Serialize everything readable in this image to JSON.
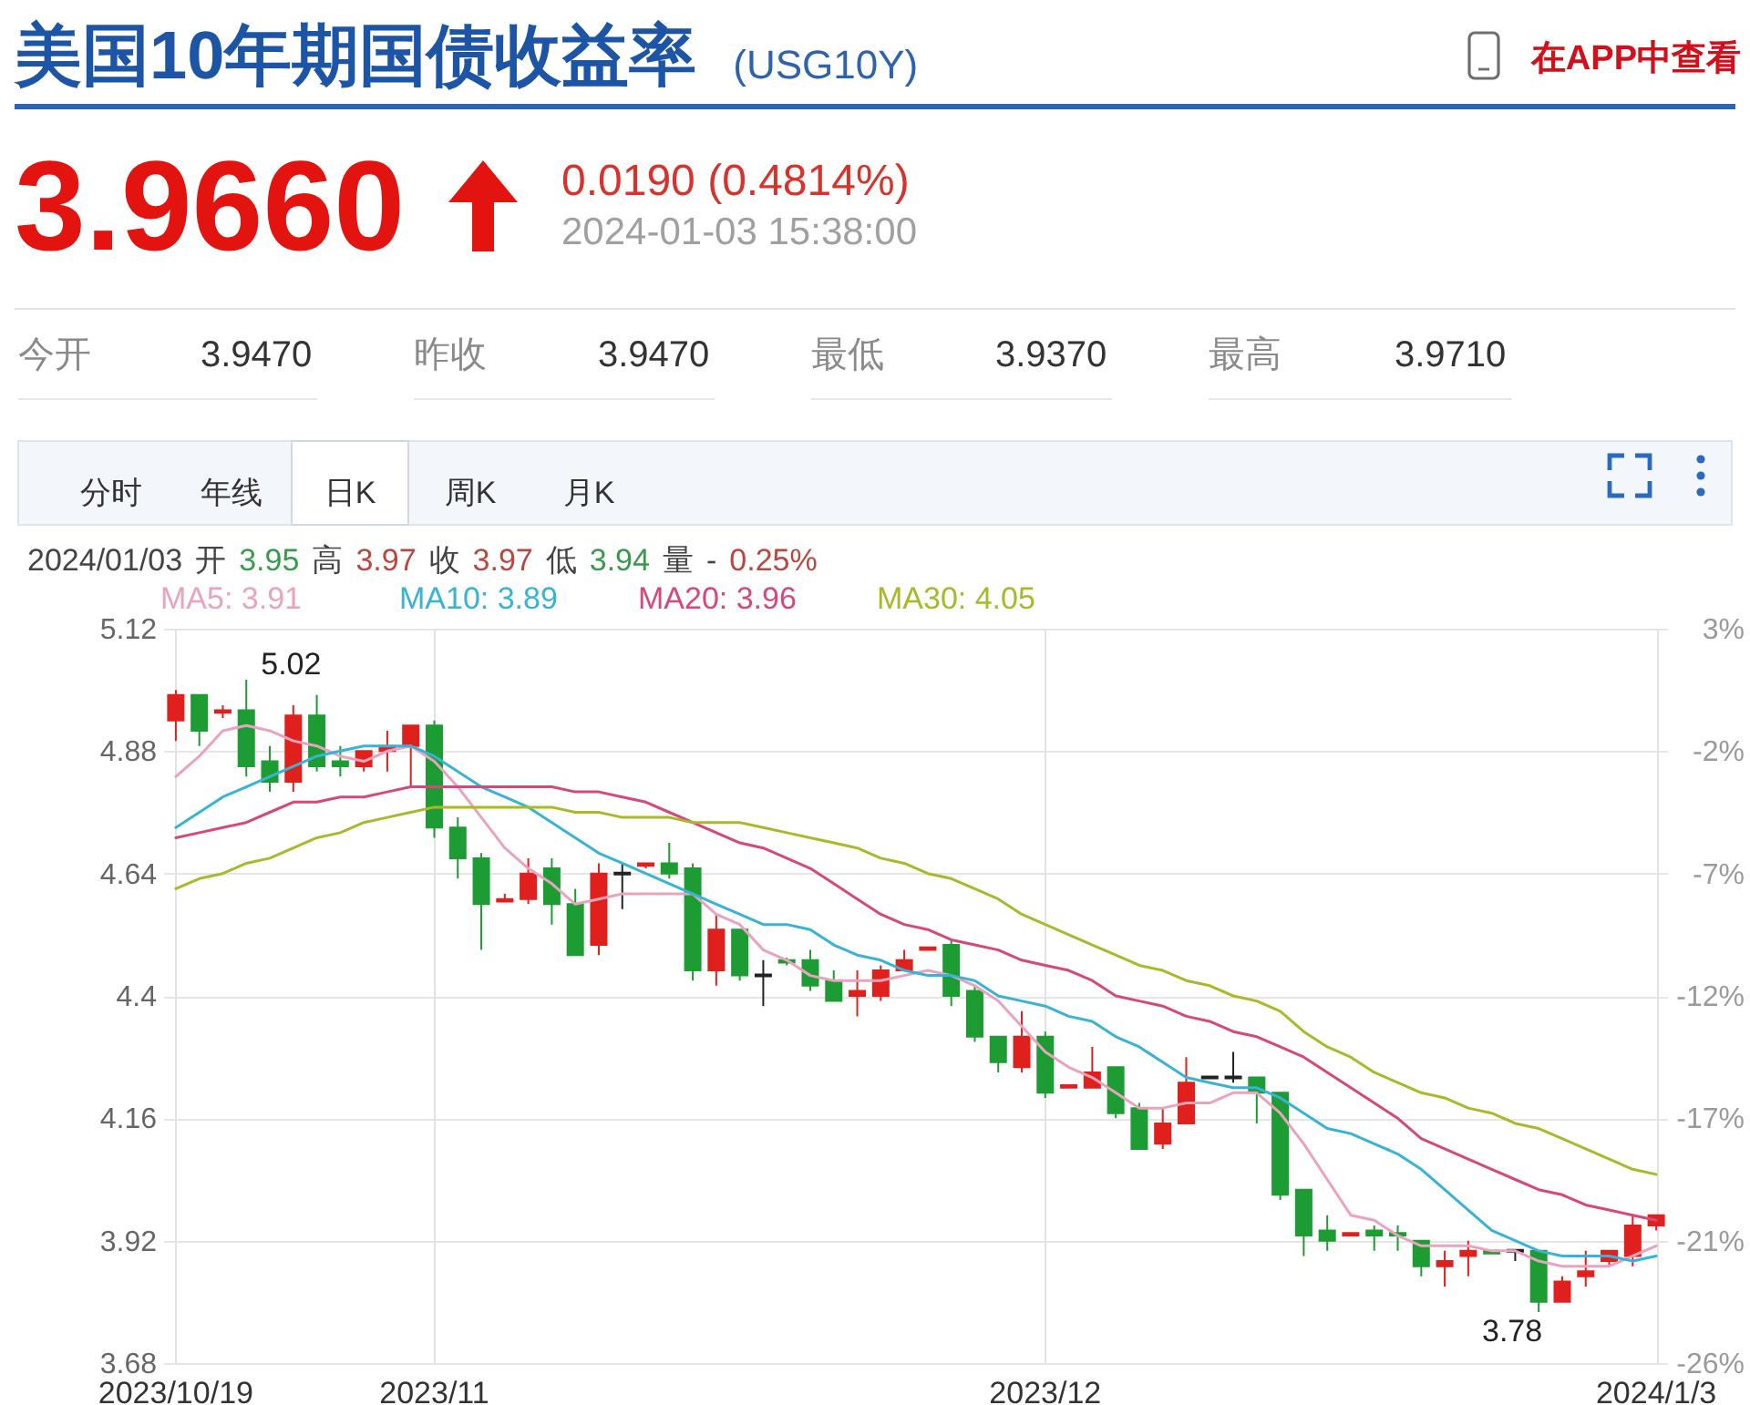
{
  "chart_data": {
    "type": "candlestick",
    "title": "美国10年期国债收益率",
    "subtitle": "(USG10Y)",
    "categories": [
      "2023/10/19",
      null,
      null,
      null,
      null,
      null,
      null,
      null,
      null,
      null,
      null,
      "2023/11",
      null,
      null,
      null,
      null,
      null,
      null,
      null,
      null,
      null,
      null,
      null,
      null,
      null,
      null,
      null,
      null,
      null,
      null,
      null,
      null,
      null,
      null,
      null,
      null,
      null,
      "2023/12",
      null,
      null,
      null,
      null,
      null,
      null,
      null,
      null,
      null,
      null,
      null,
      null,
      null,
      null,
      null,
      null,
      null,
      null,
      null,
      null,
      null,
      null,
      null,
      null,
      null,
      "2024/1/3"
    ],
    "ohlc": [
      [
        4.94,
        5.0,
        4.9,
        4.99
      ],
      [
        4.99,
        4.99,
        4.89,
        4.92
      ],
      [
        4.955,
        4.97,
        4.945,
        4.96
      ],
      [
        4.96,
        5.02,
        4.83,
        4.85
      ],
      [
        4.86,
        4.89,
        4.8,
        4.82
      ],
      [
        4.82,
        4.97,
        4.8,
        4.95
      ],
      [
        4.95,
        4.99,
        4.84,
        4.85
      ],
      [
        4.86,
        4.89,
        4.83,
        4.85
      ],
      [
        4.85,
        4.88,
        4.84,
        4.88
      ],
      [
        4.88,
        4.92,
        4.84,
        4.89
      ],
      [
        4.89,
        4.93,
        4.81,
        4.93
      ],
      [
        4.93,
        4.94,
        4.71,
        4.73
      ],
      [
        4.73,
        4.75,
        4.63,
        4.67
      ],
      [
        4.67,
        4.68,
        4.49,
        4.58
      ],
      [
        4.585,
        4.6,
        4.585,
        4.59
      ],
      [
        4.59,
        4.67,
        4.58,
        4.64
      ],
      [
        4.65,
        4.67,
        4.54,
        4.58
      ],
      [
        4.58,
        4.61,
        4.48,
        4.48
      ],
      [
        4.5,
        4.66,
        4.48,
        4.64
      ],
      [
        4.64,
        4.66,
        4.57,
        4.64
      ],
      [
        4.655,
        4.66,
        4.65,
        4.66
      ],
      [
        4.66,
        4.7,
        4.63,
        4.64
      ],
      [
        4.65,
        4.66,
        4.43,
        4.45
      ],
      [
        4.45,
        4.56,
        4.42,
        4.53
      ],
      [
        4.53,
        4.53,
        4.43,
        4.44
      ],
      [
        4.44,
        4.47,
        4.38,
        4.44
      ],
      [
        4.47,
        4.475,
        4.46,
        4.465
      ],
      [
        4.47,
        4.49,
        4.41,
        4.42
      ],
      [
        4.43,
        4.45,
        4.39,
        4.39
      ],
      [
        4.4,
        4.45,
        4.36,
        4.41
      ],
      [
        4.4,
        4.46,
        4.39,
        4.45
      ],
      [
        4.45,
        4.49,
        4.45,
        4.47
      ],
      [
        4.49,
        4.495,
        4.49,
        4.495
      ],
      [
        4.5,
        4.51,
        4.38,
        4.4
      ],
      [
        4.41,
        4.42,
        4.31,
        4.32
      ],
      [
        4.32,
        4.32,
        4.25,
        4.27
      ],
      [
        4.26,
        4.37,
        4.25,
        4.32
      ],
      [
        4.32,
        4.33,
        4.2,
        4.21
      ],
      [
        4.22,
        4.225,
        4.22,
        4.225
      ],
      [
        4.22,
        4.3,
        4.22,
        4.25
      ],
      [
        4.26,
        4.26,
        4.16,
        4.17
      ],
      [
        4.18,
        4.19,
        4.1,
        4.1
      ],
      [
        4.11,
        4.18,
        4.1,
        4.15
      ],
      [
        4.15,
        4.28,
        4.15,
        4.23
      ],
      [
        4.24,
        4.24,
        4.24,
        4.24
      ],
      [
        4.24,
        4.29,
        4.23,
        4.24
      ],
      [
        4.24,
        4.24,
        4.15,
        4.21
      ],
      [
        4.21,
        4.21,
        4.0,
        4.01
      ],
      [
        4.02,
        4.02,
        3.89,
        3.93
      ],
      [
        3.94,
        3.97,
        3.9,
        3.92
      ],
      [
        3.93,
        3.935,
        3.93,
        3.935
      ],
      [
        3.94,
        3.95,
        3.9,
        3.93
      ],
      [
        3.935,
        3.95,
        3.9,
        3.93
      ],
      [
        3.92,
        3.92,
        3.85,
        3.87
      ],
      [
        3.87,
        3.9,
        3.83,
        3.88
      ],
      [
        3.89,
        3.92,
        3.85,
        3.9
      ],
      [
        3.9,
        3.9,
        3.895,
        3.895
      ],
      [
        3.9,
        3.9,
        3.88,
        3.9
      ],
      [
        3.9,
        3.9,
        3.78,
        3.8
      ],
      [
        3.8,
        3.85,
        3.8,
        3.84
      ],
      [
        3.85,
        3.9,
        3.83,
        3.86
      ],
      [
        3.88,
        3.9,
        3.87,
        3.9
      ],
      [
        3.89,
        3.97,
        3.87,
        3.95
      ],
      [
        3.95,
        3.97,
        3.94,
        3.97
      ]
    ],
    "colors": [
      "#e0201c",
      "#1e9c34",
      "#e0201c",
      "#1e9c34",
      "#1e9c34",
      "#e0201c",
      "#1e9c34",
      "#1e9c34",
      "#e0201c",
      "#e0201c",
      "#e0201c",
      "#1e9c34",
      "#1e9c34",
      "#1e9c34",
      "#e0201c",
      "#e0201c",
      "#1e9c34",
      "#1e9c34",
      "#e0201c",
      "#222222",
      "#e0201c",
      "#1e9c34",
      "#1e9c34",
      "#e0201c",
      "#1e9c34",
      "#222222",
      "#1e9c34",
      "#1e9c34",
      "#1e9c34",
      "#e0201c",
      "#e0201c",
      "#e0201c",
      "#e0201c",
      "#1e9c34",
      "#1e9c34",
      "#1e9c34",
      "#e0201c",
      "#1e9c34",
      "#e0201c",
      "#e0201c",
      "#1e9c34",
      "#1e9c34",
      "#e0201c",
      "#e0201c",
      "#222222",
      "#222222",
      "#1e9c34",
      "#1e9c34",
      "#1e9c34",
      "#1e9c34",
      "#e0201c",
      "#1e9c34",
      "#1e9c34",
      "#1e9c34",
      "#e0201c",
      "#e0201c",
      "#1e9c34",
      "#222222",
      "#1e9c34",
      "#e0201c",
      "#e0201c",
      "#e0201c",
      "#e0201c",
      "#e0201c"
    ],
    "series": [
      {
        "name": "MA5: 3.91",
        "type": "line",
        "color": "#eaa3bf",
        "values": [
          4.83,
          4.87,
          4.92,
          4.93,
          4.92,
          4.9,
          4.89,
          4.87,
          4.86,
          4.88,
          4.89,
          4.86,
          4.81,
          4.75,
          4.69,
          4.65,
          4.62,
          4.58,
          4.59,
          4.6,
          4.6,
          4.6,
          4.6,
          4.56,
          4.54,
          4.49,
          4.47,
          4.44,
          4.43,
          4.43,
          4.43,
          4.44,
          4.45,
          4.44,
          4.42,
          4.39,
          4.34,
          4.29,
          4.26,
          4.24,
          4.21,
          4.18,
          4.18,
          4.19,
          4.19,
          4.21,
          4.21,
          4.17,
          4.11,
          4.04,
          3.97,
          3.96,
          3.93,
          3.91,
          3.91,
          3.91,
          3.9,
          3.9,
          3.88,
          3.87,
          3.87,
          3.87,
          3.89,
          3.91
        ]
      },
      {
        "name": "MA10: 3.89",
        "type": "line",
        "color": "#38b3d6",
        "values": [
          4.73,
          4.76,
          4.79,
          4.81,
          4.83,
          4.85,
          4.87,
          4.88,
          4.89,
          4.89,
          4.89,
          4.87,
          4.84,
          4.81,
          4.79,
          4.77,
          4.74,
          4.71,
          4.68,
          4.66,
          4.64,
          4.62,
          4.6,
          4.58,
          4.56,
          4.54,
          4.54,
          4.53,
          4.5,
          4.48,
          4.47,
          4.45,
          4.44,
          4.44,
          4.43,
          4.4,
          4.39,
          4.38,
          4.36,
          4.35,
          4.32,
          4.3,
          4.27,
          4.24,
          4.23,
          4.22,
          4.22,
          4.2,
          4.17,
          4.14,
          4.13,
          4.11,
          4.09,
          4.06,
          4.02,
          3.98,
          3.94,
          3.92,
          3.9,
          3.89,
          3.89,
          3.89,
          3.88,
          3.89
        ]
      },
      {
        "name": "MA20: 3.96",
        "type": "line",
        "color": "#d6477c",
        "values": [
          4.71,
          4.72,
          4.73,
          4.74,
          4.76,
          4.78,
          4.78,
          4.79,
          4.79,
          4.8,
          4.81,
          4.81,
          4.81,
          4.81,
          4.81,
          4.81,
          4.81,
          4.8,
          4.8,
          4.79,
          4.78,
          4.76,
          4.74,
          4.72,
          4.7,
          4.69,
          4.67,
          4.65,
          4.62,
          4.59,
          4.56,
          4.54,
          4.53,
          4.51,
          4.5,
          4.49,
          4.47,
          4.46,
          4.45,
          4.43,
          4.4,
          4.39,
          4.38,
          4.36,
          4.35,
          4.33,
          4.32,
          4.3,
          4.28,
          4.25,
          4.22,
          4.19,
          4.16,
          4.12,
          4.1,
          4.08,
          4.06,
          4.04,
          4.02,
          4.01,
          3.99,
          3.98,
          3.97,
          3.96
        ]
      },
      {
        "name": "MA30: 4.05",
        "type": "line",
        "color": "#a9b92a",
        "values": [
          4.61,
          4.63,
          4.64,
          4.66,
          4.67,
          4.69,
          4.71,
          4.72,
          4.74,
          4.75,
          4.76,
          4.77,
          4.77,
          4.77,
          4.77,
          4.77,
          4.77,
          4.76,
          4.76,
          4.75,
          4.75,
          4.75,
          4.74,
          4.74,
          4.74,
          4.73,
          4.72,
          4.71,
          4.7,
          4.69,
          4.67,
          4.66,
          4.64,
          4.63,
          4.61,
          4.59,
          4.56,
          4.54,
          4.52,
          4.5,
          4.48,
          4.46,
          4.45,
          4.43,
          4.42,
          4.4,
          4.39,
          4.37,
          4.33,
          4.3,
          4.28,
          4.25,
          4.23,
          4.21,
          4.2,
          4.18,
          4.17,
          4.15,
          4.14,
          4.12,
          4.1,
          4.08,
          4.06,
          4.05
        ]
      }
    ],
    "ylim": [
      3.68,
      5.12
    ],
    "yticks": [
      3.68,
      3.92,
      4.16,
      4.4,
      4.64,
      4.88,
      5.12
    ],
    "y2lim": [
      -26.2,
      2.6
    ],
    "y2ticks": [
      {
        "value": -26.2,
        "label": "-26%"
      },
      {
        "value": -21.4,
        "label": "-21%"
      },
      {
        "value": -16.6,
        "label": "-17%"
      },
      {
        "value": -11.8,
        "label": "-12%"
      },
      {
        "value": -7.0,
        "label": "-7%"
      },
      {
        "value": -2.2,
        "label": "-2%"
      },
      {
        "value": 2.6,
        "label": "3%"
      }
    ],
    "grid": true,
    "legend": "top left",
    "annotations": [
      "在APP中查看",
      "3.9660",
      "0.0190 (0.4814%)",
      "2024-01-03 15:38:00",
      "今开",
      "3.9470",
      "昨收",
      "3.9470",
      "最低",
      "3.9370",
      "最高",
      "3.9710",
      "分时",
      "年线",
      "日K",
      "周K",
      "月K",
      "2024/01/03",
      "开",
      "3.95",
      "高",
      "3.97",
      "收",
      "3.97",
      "低",
      "3.94",
      "量",
      "-",
      "0.25%",
      "5.02",
      "3.78"
    ]
  }
}
